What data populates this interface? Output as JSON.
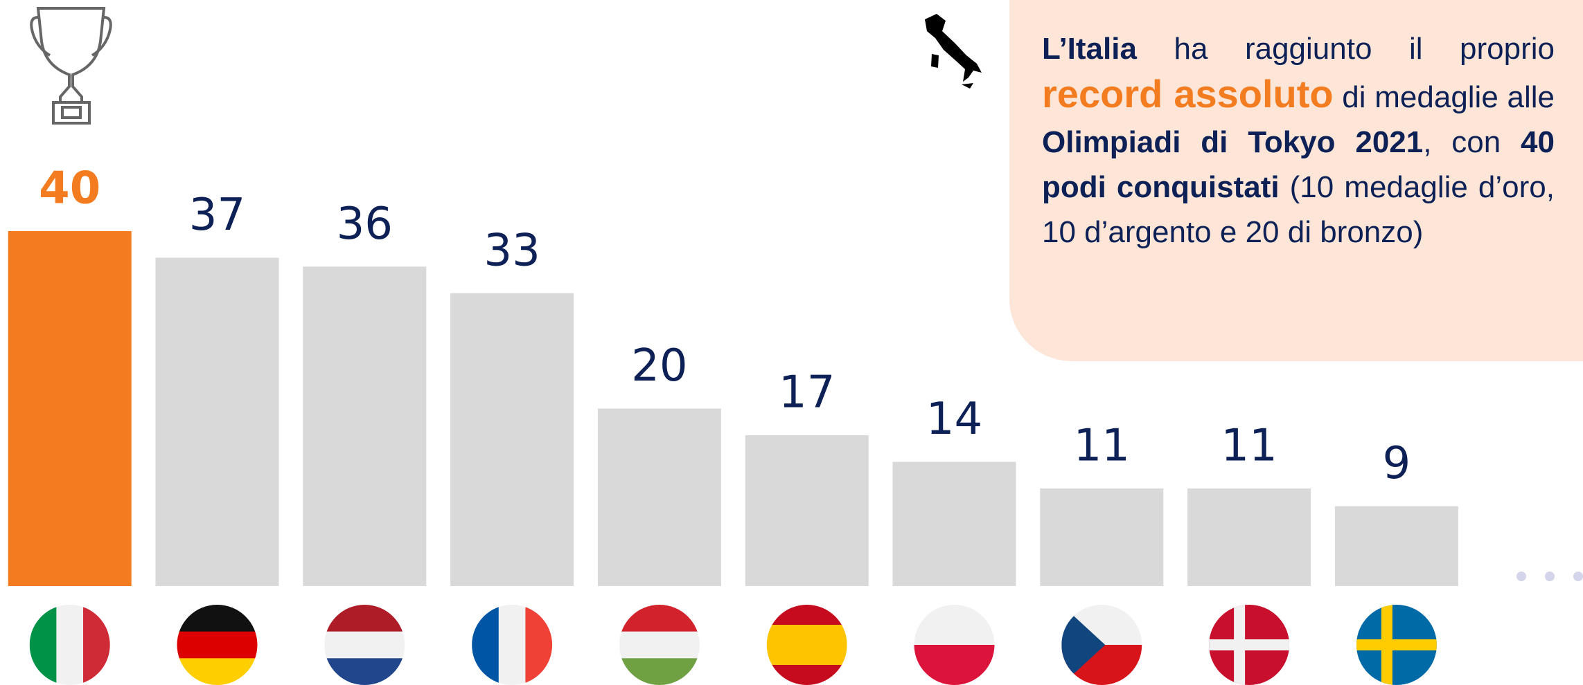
{
  "chart_data": {
    "type": "bar",
    "categories": [
      null,
      null,
      null,
      null,
      null,
      null,
      null,
      null,
      null,
      null
    ],
    "values": [
      40,
      37,
      36,
      33,
      20,
      17,
      14,
      11,
      11,
      9
    ],
    "colors": [
      "#f47c20",
      "#d9d9d9",
      "#d9d9d9",
      "#d9d9d9",
      "#d9d9d9",
      "#d9d9d9",
      "#d9d9d9",
      "#d9d9d9",
      "#d9d9d9",
      "#d9d9d9"
    ],
    "label_colors": [
      "#f47c20",
      "#0d2157",
      "#0d2157",
      "#0d2157",
      "#0d2157",
      "#0d2157",
      "#0d2157",
      "#0d2157",
      "#0d2157",
      "#0d2157"
    ],
    "ylim": [
      0,
      40
    ],
    "annotation": [
      {
        "text": "L’Italia",
        "style": "bold"
      },
      {
        "text": " ha raggiunto il proprio ",
        "style": "normal"
      },
      {
        "text": "record assoluto",
        "style": "highlight"
      },
      {
        "text": " di medaglie alle ",
        "style": "normal"
      },
      {
        "text": "Olimpiadi di Tokyo 2021",
        "style": "bold"
      },
      {
        "text": ", con ",
        "style": "normal"
      },
      {
        "text": "40 podi conquistati",
        "style": "bold"
      },
      {
        "text": " (10 medaglie d’oro, 10 d’argento e 20 di bronzo)",
        "style": "normal"
      }
    ]
  }
}
